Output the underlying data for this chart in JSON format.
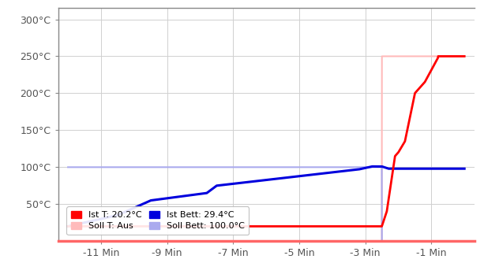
{
  "x_ticks_labels": [
    "-11 Min",
    "-9 Min",
    "-7 Min",
    "-5 Min",
    "-3 Min",
    "-1 Min"
  ],
  "x_ticks_pos": [
    -11,
    -9,
    -7,
    -5,
    -3,
    -1
  ],
  "x_lim": [
    -12.3,
    0.3
  ],
  "y_lim": [
    0,
    315
  ],
  "y_ticks": [
    50,
    100,
    150,
    200,
    250,
    300
  ],
  "y_tick_labels": [
    "50°C",
    "100°C",
    "150°C",
    "200°C",
    "250°C",
    "300°C"
  ],
  "background_color": "#ffffff",
  "grid_color": "#d0d0d0",
  "soll_t_color": "#ffbbbb",
  "ist_t_color": "#ff0000",
  "ist_bett_color": "#0000dd",
  "soll_bett_color": "#aaaaee",
  "legend_row1": [
    {
      "label": "Ist T: 20.2°C",
      "color": "#ff0000"
    },
    {
      "label": "Soll T: Aus",
      "color": "#ffbbbb"
    }
  ],
  "legend_row2": [
    {
      "label": "Ist Bett: 29.4°C",
      "color": "#0000dd"
    },
    {
      "label": "Soll Bett: 100.0°C",
      "color": "#aaaaee"
    }
  ],
  "spine_color": "#888888",
  "border_bottom_color": "#ff6666",
  "tick_label_color": "#555555"
}
